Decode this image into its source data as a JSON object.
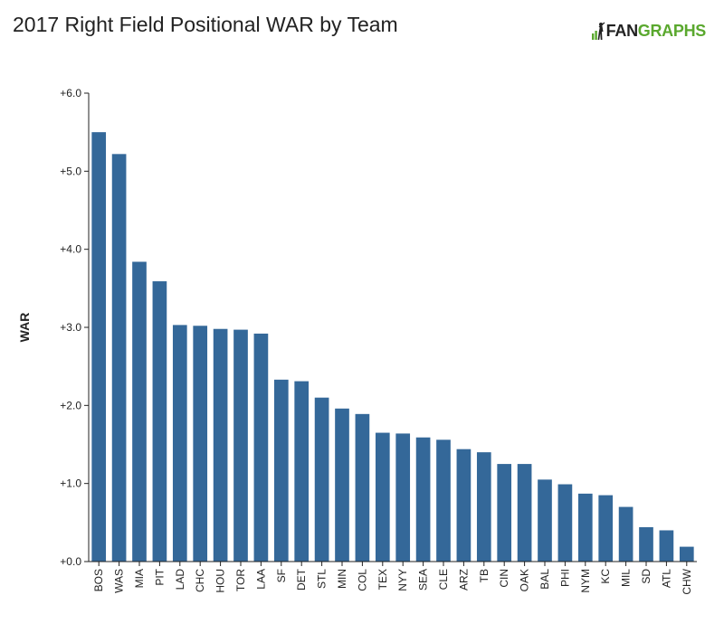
{
  "header": {
    "title": "2017 Right Field Positional WAR by Team",
    "logo_text_a": "FAN",
    "logo_text_b": "GRAPHS"
  },
  "colors": {
    "bar": "#346899",
    "axis": "#222222",
    "brand_green": "#5aa82e"
  },
  "chart_data": {
    "type": "bar",
    "title": "2017 Right Field Positional WAR by Team",
    "xlabel": "",
    "ylabel": "WAR",
    "ylim": [
      0,
      6
    ],
    "yticks": [
      "+0.0",
      "+1.0",
      "+2.0",
      "+3.0",
      "+4.0",
      "+5.0",
      "+6.0"
    ],
    "grid": false,
    "categories": [
      "BOS",
      "WAS",
      "MIA",
      "PIT",
      "LAD",
      "CHC",
      "HOU",
      "TOR",
      "LAA",
      "SF",
      "DET",
      "STL",
      "MIN",
      "COL",
      "TEX",
      "NYY",
      "SEA",
      "CLE",
      "ARZ",
      "TB",
      "CIN",
      "OAK",
      "BAL",
      "PHI",
      "NYM",
      "KC",
      "MIL",
      "SD",
      "ATL",
      "CHW"
    ],
    "values": [
      5.5,
      5.22,
      3.84,
      3.59,
      3.03,
      3.02,
      2.98,
      2.97,
      2.92,
      2.33,
      2.31,
      2.1,
      1.96,
      1.89,
      1.65,
      1.64,
      1.59,
      1.56,
      1.44,
      1.4,
      1.25,
      1.25,
      1.05,
      0.99,
      0.87,
      0.85,
      0.7,
      0.44,
      0.4,
      0.19
    ]
  }
}
